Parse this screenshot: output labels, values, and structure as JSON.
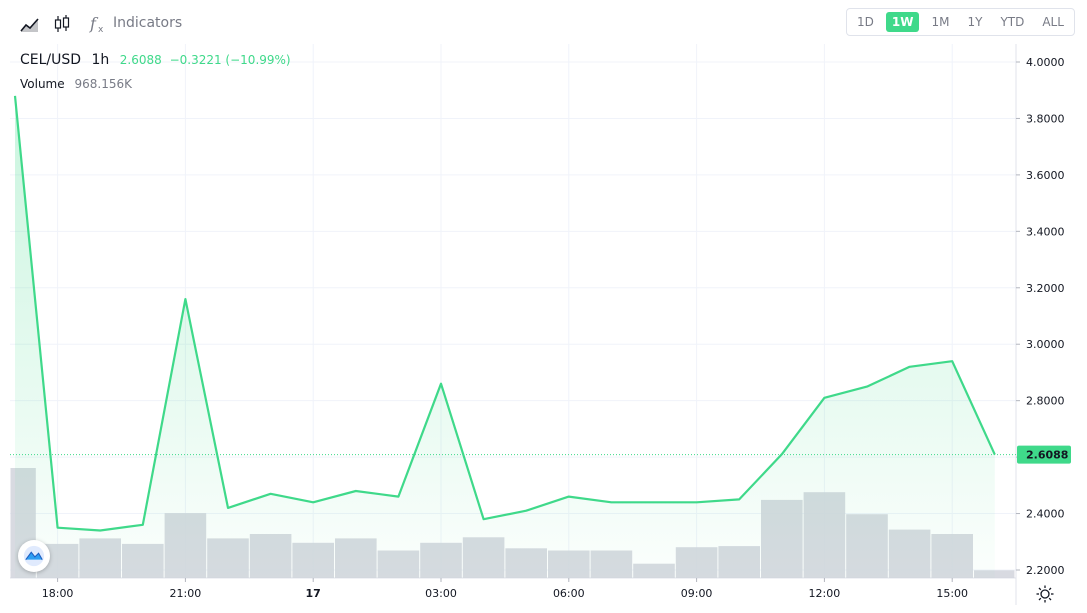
{
  "toolbar": {
    "indicators_label": "Indicators",
    "icons": [
      "chart-type-line-icon",
      "chart-type-candles-icon",
      "indicators-fx-icon"
    ]
  },
  "ranges": [
    {
      "label": "1D",
      "active": false
    },
    {
      "label": "1W",
      "active": true
    },
    {
      "label": "1M",
      "active": false
    },
    {
      "label": "1Y",
      "active": false
    },
    {
      "label": "YTD",
      "active": false
    },
    {
      "label": "ALL",
      "active": false
    }
  ],
  "legend": {
    "symbol": "CEL/USD",
    "timeframe": "1h",
    "last": "2.6088",
    "change": "−0.3221 (−10.99%)",
    "volume_label": "Volume",
    "volume_value": "968.156K"
  },
  "colors": {
    "line": "#3fd98a",
    "volume": "#d1d4dc",
    "text": "#131722",
    "muted": "#787b86"
  },
  "chart_data": {
    "type": "area",
    "title": "CEL/USD",
    "x": [
      "17:00",
      "18:00",
      "19:00",
      "20:00",
      "21:00",
      "22:00",
      "23:00",
      "00:00",
      "01:00",
      "02:00",
      "03:00",
      "04:00",
      "05:00",
      "06:00",
      "07:00",
      "08:00",
      "09:00",
      "10:00",
      "11:00",
      "12:00",
      "13:00",
      "14:00",
      "15:00",
      "16:00"
    ],
    "series": [
      {
        "name": "CEL/USD",
        "values": [
          3.88,
          2.35,
          2.34,
          2.36,
          3.16,
          2.42,
          2.47,
          2.44,
          2.48,
          2.46,
          2.86,
          2.38,
          2.41,
          2.46,
          2.44,
          2.44,
          2.44,
          2.45,
          2.61,
          2.81,
          2.85,
          2.92,
          2.94,
          2.6088
        ]
      },
      {
        "name": "Volume",
        "values": [
          100,
          31,
          36,
          31,
          59,
          36,
          40,
          32,
          36,
          25,
          32,
          37,
          27,
          25,
          25,
          13,
          28,
          29,
          71,
          78,
          58,
          44,
          40,
          7
        ]
      }
    ],
    "y_ticks": [
      "4.0000",
      "3.8000",
      "3.6000",
      "3.4000",
      "3.2000",
      "3.0000",
      "2.8000",
      "2.6000",
      "2.4000",
      "2.2000"
    ],
    "x_ticks": [
      {
        "label": "18:00",
        "at": 1
      },
      {
        "label": "21:00",
        "at": 4
      },
      {
        "label": "17",
        "at": 7,
        "bold": true
      },
      {
        "label": "03:00",
        "at": 10
      },
      {
        "label": "06:00",
        "at": 13
      },
      {
        "label": "09:00",
        "at": 16
      },
      {
        "label": "12:00",
        "at": 19
      },
      {
        "label": "15:00",
        "at": 22
      }
    ],
    "ylim": [
      2.2,
      4.0
    ],
    "last_price_label": "2.6088",
    "grid": true
  }
}
